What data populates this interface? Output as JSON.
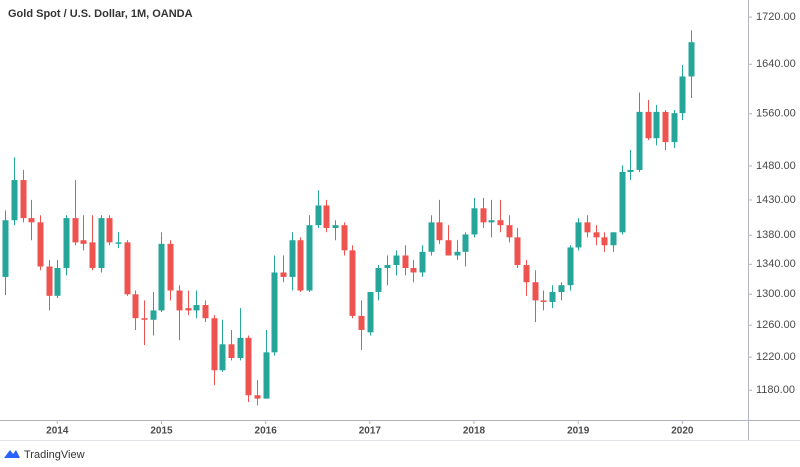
{
  "chart_data": {
    "type": "candlestick",
    "title": "Gold Spot / U.S. Dollar, 1M, OANDA",
    "brand": "TradingView",
    "up_color": "#26a69a",
    "down_color": "#ef5350",
    "log_scale": true,
    "grid": false,
    "x": [
      2013.5,
      2013.583,
      2013.667,
      2013.75,
      2013.833,
      2013.917,
      2014,
      2014.083,
      2014.167,
      2014.25,
      2014.333,
      2014.417,
      2014.5,
      2014.583,
      2014.667,
      2014.75,
      2014.833,
      2014.917,
      2015,
      2015.083,
      2015.167,
      2015.25,
      2015.333,
      2015.417,
      2015.5,
      2015.583,
      2015.667,
      2015.75,
      2015.833,
      2015.917,
      2016,
      2016.083,
      2016.167,
      2016.25,
      2016.333,
      2016.417,
      2016.5,
      2016.583,
      2016.667,
      2016.75,
      2016.833,
      2016.917,
      2017,
      2017.083,
      2017.167,
      2017.25,
      2017.333,
      2017.417,
      2017.5,
      2017.583,
      2017.667,
      2017.75,
      2017.833,
      2017.917,
      2018,
      2018.083,
      2018.167,
      2018.25,
      2018.333,
      2018.417,
      2018.5,
      2018.583,
      2018.667,
      2018.75,
      2018.833,
      2018.917,
      2019,
      2019.083,
      2019.167,
      2019.25,
      2019.333,
      2019.417,
      2019.5,
      2019.583,
      2019.667,
      2019.75,
      2019.833,
      2019.917,
      2020,
      2020.083
    ],
    "open": [
      1323,
      1401,
      1459,
      1404,
      1398,
      1337,
      1298,
      1335,
      1404,
      1373,
      1370,
      1335,
      1404,
      1368,
      1370,
      1300,
      1269,
      1267,
      1279,
      1368,
      1305,
      1282,
      1279,
      1286,
      1269,
      1204,
      1236,
      1219,
      1244,
      1174,
      1170,
      1226,
      1329,
      1323,
      1373,
      1305,
      1394,
      1422,
      1390,
      1394,
      1359,
      1272,
      1251,
      1303,
      1335,
      1339,
      1352,
      1335,
      1329,
      1357,
      1398,
      1373,
      1352,
      1357,
      1381,
      1418,
      1398,
      1401,
      1394,
      1377,
      1339,
      1316,
      1292,
      1290,
      1303,
      1312,
      1363,
      1398,
      1384,
      1377,
      1366,
      1384,
      1471,
      1474,
      1563,
      1522,
      1563,
      1516,
      1561,
      1620
    ],
    "high": [
      1415,
      1493,
      1474,
      1430,
      1408,
      1346,
      1346,
      1408,
      1459,
      1408,
      1408,
      1408,
      1408,
      1384,
      1373,
      1305,
      1292,
      1303,
      1384,
      1373,
      1312,
      1305,
      1305,
      1292,
      1273,
      1267,
      1254,
      1282,
      1247,
      1192,
      1254,
      1352,
      1352,
      1384,
      1377,
      1408,
      1444,
      1430,
      1401,
      1398,
      1366,
      1292,
      1303,
      1339,
      1352,
      1359,
      1366,
      1346,
      1366,
      1408,
      1430,
      1394,
      1373,
      1384,
      1433,
      1433,
      1430,
      1430,
      1408,
      1390,
      1346,
      1332,
      1305,
      1312,
      1316,
      1366,
      1404,
      1408,
      1394,
      1384,
      1384,
      1481,
      1504,
      1594,
      1582,
      1574,
      1566,
      1566,
      1639,
      1697
    ],
    "low": [
      1299,
      1394,
      1398,
      1373,
      1332,
      1279,
      1295,
      1325,
      1366,
      1359,
      1332,
      1329,
      1366,
      1362,
      1298,
      1254,
      1235,
      1247,
      1277,
      1292,
      1241,
      1273,
      1269,
      1264,
      1186,
      1202,
      1216,
      1216,
      1166,
      1162,
      1170,
      1222,
      1316,
      1305,
      1303,
      1303,
      1390,
      1384,
      1373,
      1352,
      1269,
      1229,
      1247,
      1292,
      1312,
      1325,
      1325,
      1316,
      1323,
      1352,
      1368,
      1352,
      1346,
      1337,
      1377,
      1390,
      1377,
      1384,
      1370,
      1335,
      1298,
      1264,
      1279,
      1282,
      1292,
      1305,
      1359,
      1377,
      1366,
      1357,
      1357,
      1381,
      1459,
      1471,
      1519,
      1511,
      1504,
      1507,
      1550,
      1585
    ],
    "close": [
      1401,
      1459,
      1404,
      1398,
      1337,
      1298,
      1335,
      1404,
      1370,
      1368,
      1335,
      1404,
      1370,
      1370,
      1300,
      1269,
      1267,
      1279,
      1368,
      1305,
      1279,
      1279,
      1286,
      1269,
      1204,
      1236,
      1219,
      1244,
      1174,
      1170,
      1226,
      1329,
      1323,
      1373,
      1305,
      1394,
      1422,
      1390,
      1394,
      1359,
      1272,
      1254,
      1303,
      1335,
      1339,
      1352,
      1335,
      1329,
      1357,
      1398,
      1373,
      1352,
      1357,
      1381,
      1418,
      1398,
      1401,
      1394,
      1377,
      1339,
      1316,
      1292,
      1290,
      1303,
      1312,
      1363,
      1398,
      1384,
      1377,
      1366,
      1384,
      1471,
      1474,
      1563,
      1522,
      1563,
      1516,
      1561,
      1620,
      1677
    ],
    "xlim": [
      2013.45,
      2020.63
    ],
    "xticks": [
      2014,
      2015,
      2016,
      2017,
      2018,
      2019,
      2020
    ],
    "ylim": [
      1145,
      1750
    ],
    "yticks": [
      {
        "value": 1180,
        "label": "1180.00"
      },
      {
        "value": 1220,
        "label": "1220.00"
      },
      {
        "value": 1260,
        "label": "1260.00"
      },
      {
        "value": 1300,
        "label": "1300.00"
      },
      {
        "value": 1340,
        "label": "1340.00"
      },
      {
        "value": 1380,
        "label": "1380.00"
      },
      {
        "value": 1430,
        "label": "1430.00"
      },
      {
        "value": 1480,
        "label": "1480.00"
      },
      {
        "value": 1560,
        "label": "1560.00"
      },
      {
        "value": 1640,
        "label": "1640.00"
      },
      {
        "value": 1720,
        "label": "1720.00"
      }
    ]
  }
}
